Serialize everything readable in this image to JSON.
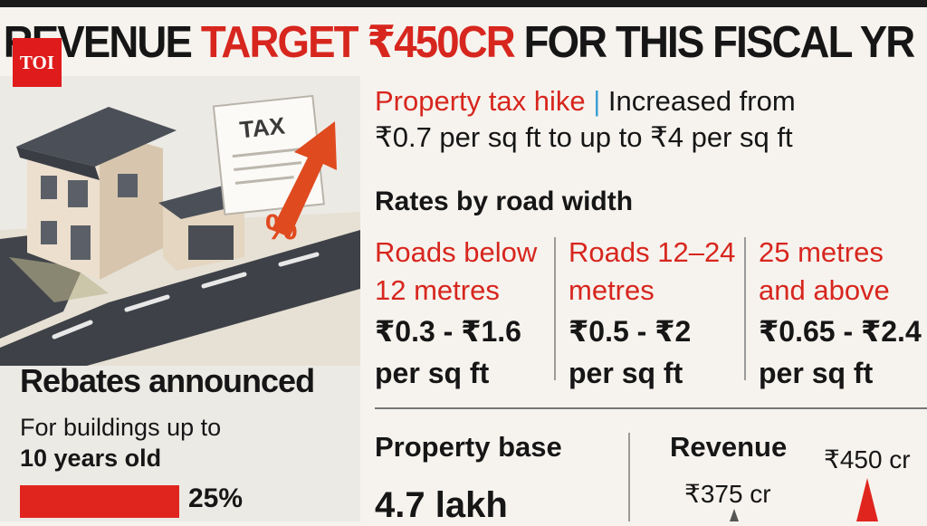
{
  "headline": {
    "part1": "REVENUE ",
    "part2": "TARGET ₹450CR",
    "part3": " FOR THIS FISCAL YR"
  },
  "logo": "TOI",
  "illustration": {
    "tax_sign": "TAX",
    "percent_sign": "%"
  },
  "property_tax_hike": {
    "label": "Property tax hike",
    "separator": "|",
    "text_line1": "Increased from",
    "text_line2": "₹0.7 per sq ft to up to ₹4 per sq ft"
  },
  "rates_by_road_width": {
    "title": "Rates by road width",
    "columns": [
      {
        "label_line1": "Roads below",
        "label_line2": "12 metres",
        "rate_line1": "₹0.3 - ₹1.6",
        "rate_line2": "per sq ft"
      },
      {
        "label_line1": "Roads 12–24",
        "label_line2": "metres",
        "rate_line1": "₹0.5 - ₹2",
        "rate_line2": "per sq ft"
      },
      {
        "label_line1": "25 metres",
        "label_line2": "and above",
        "rate_line1": "₹0.65 - ₹2.4",
        "rate_line2": "per sq ft"
      }
    ]
  },
  "rebates": {
    "title": "Rebates announced",
    "desc_line1": "For buildings up to",
    "desc_line2": "10 years old",
    "percent": "25%",
    "percent_value": 25,
    "bar_color": "#e0251e"
  },
  "property_base": {
    "label": "Property base",
    "value": "4.7 lakh"
  },
  "revenue": {
    "label": "Revenue",
    "current": "₹375 cr",
    "target": "₹450 cr"
  },
  "colors": {
    "accent_red": "#d7261e",
    "separator_blue": "#3aa0d5",
    "text_dark": "#161616"
  }
}
